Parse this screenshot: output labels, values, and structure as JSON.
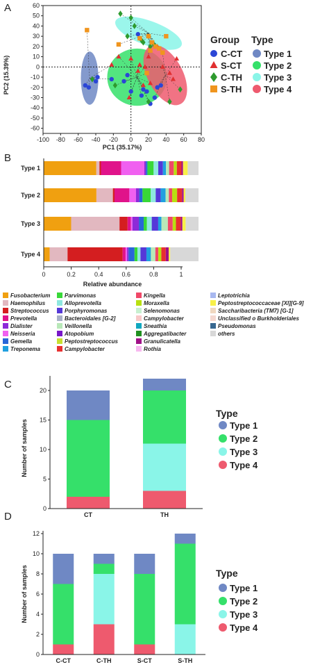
{
  "colors": {
    "C-CT": "#2b46d6",
    "S-CT": "#e03030",
    "C-TH": "#2e9a2e",
    "S-TH": "#f0951e",
    "Type 1": "#6f88c4",
    "Type 2": "#35e06a",
    "Type 3": "#8af5e8",
    "Type 4": "#ee5a6e"
  },
  "panels": {
    "A": "A",
    "B": "B",
    "C": "C",
    "D": "D"
  },
  "chart_data": [
    {
      "type": "scatter",
      "panel": "A",
      "xlabel": "PC1 (35.17%)",
      "ylabel": "PC2 (15.39%)",
      "xlim": [
        -100,
        80
      ],
      "ylim": [
        -65,
        60
      ],
      "xticks": [
        -100,
        -80,
        -60,
        -40,
        -20,
        0,
        20,
        40,
        60,
        80
      ],
      "yticks": [
        60,
        50,
        40,
        30,
        20,
        10,
        0,
        -10,
        -20,
        -30,
        -40,
        -50,
        -60
      ],
      "legend_groups_title": "Group",
      "legend_types_title": "Type",
      "series": [
        {
          "name": "C-CT",
          "marker": "circle",
          "points": [
            [
              -52,
              -18
            ],
            [
              -48,
              -20
            ],
            [
              -38,
              -10
            ],
            [
              -40,
              -14
            ],
            [
              -22,
              -12
            ],
            [
              -8,
              -14
            ],
            [
              -4,
              -8
            ],
            [
              0,
              -24
            ],
            [
              12,
              -28
            ],
            [
              14,
              -22
            ],
            [
              18,
              -24
            ],
            [
              22,
              -36
            ],
            [
              27,
              -30
            ],
            [
              30,
              -20
            ],
            [
              34,
              -18
            ],
            [
              8,
              32
            ]
          ]
        },
        {
          "name": "S-CT",
          "marker": "triangle",
          "points": [
            [
              -22,
              2
            ],
            [
              -14,
              10
            ],
            [
              0,
              8
            ],
            [
              10,
              2
            ],
            [
              16,
              0
            ],
            [
              14,
              -18
            ],
            [
              20,
              10
            ],
            [
              30,
              20
            ],
            [
              36,
              0
            ],
            [
              44,
              -6
            ],
            [
              48,
              -12
            ],
            [
              52,
              8
            ],
            [
              -2,
              -30
            ],
            [
              22,
              -16
            ],
            [
              8,
              -4
            ]
          ]
        },
        {
          "name": "C-TH",
          "marker": "diamond",
          "points": [
            [
              -12,
              52
            ],
            [
              0,
              48
            ],
            [
              4,
              40
            ],
            [
              -4,
              30
            ],
            [
              12,
              26
            ],
            [
              14,
              24
            ],
            [
              22,
              20
            ],
            [
              26,
              22
            ],
            [
              -18,
              -18
            ],
            [
              20,
              -34
            ],
            [
              44,
              -34
            ],
            [
              56,
              -22
            ],
            [
              -44,
              -12
            ]
          ]
        },
        {
          "name": "S-TH",
          "marker": "square",
          "points": [
            [
              -50,
              36
            ],
            [
              10,
              28
            ],
            [
              20,
              30
            ],
            [
              24,
              24
            ],
            [
              28,
              20
            ],
            [
              40,
              30
            ],
            [
              -14,
              22
            ],
            [
              32,
              18
            ],
            [
              36,
              14
            ],
            [
              22,
              16
            ],
            [
              18,
              -6
            ]
          ]
        }
      ],
      "ellipses": [
        {
          "type": "Type 1",
          "center": [
            -47,
            -11
          ],
          "rx": 10,
          "ry": 26
        },
        {
          "type": "Type 2",
          "center": [
            7,
            -10
          ],
          "rx": 34,
          "ry": 28
        },
        {
          "type": "Type 3",
          "center": [
            20,
            33
          ],
          "rx": 40,
          "ry": 12
        },
        {
          "type": "Type 4",
          "center": [
            39,
            -8
          ],
          "rx": 20,
          "ry": 32
        }
      ]
    },
    {
      "type": "bar",
      "panel": "B",
      "orientation": "horizontal",
      "stacked": true,
      "xlabel": "Relative abundance",
      "xlim": [
        0,
        1.0
      ],
      "xticks": [
        0,
        0.2,
        0.4,
        0.6,
        0.8,
        1.0
      ],
      "categories": [
        "Type 1",
        "Type 2",
        "Type 3",
        "Type 4"
      ],
      "taxa_legend": [
        {
          "name": "Fusobacterium",
          "color": "#f0a010"
        },
        {
          "name": "Haemophilus",
          "color": "#e2b8c0"
        },
        {
          "name": "Streptococcus",
          "color": "#d41e20"
        },
        {
          "name": "Prevotella",
          "color": "#e0138a"
        },
        {
          "name": "Dialister",
          "color": "#8d2ad8"
        },
        {
          "name": "Neisseria",
          "color": "#f060f0"
        },
        {
          "name": "Gemella",
          "color": "#2866d8"
        },
        {
          "name": "Treponema",
          "color": "#20a0e0"
        },
        {
          "name": "Parvimonas",
          "color": "#38d838"
        },
        {
          "name": "Alloprevotella",
          "color": "#8ee8e0"
        },
        {
          "name": "Porphyromonas",
          "color": "#5538d8"
        },
        {
          "name": "Bacteroidales [G-2]",
          "color": "#a8b0c8"
        },
        {
          "name": "Veillonella",
          "color": "#b8e8b8"
        },
        {
          "name": "Atopobium",
          "color": "#7818c8"
        },
        {
          "name": "Peptostreptococcus",
          "color": "#c8e030"
        },
        {
          "name": "Campylobacter",
          "color": "#e83030"
        },
        {
          "name": "Kingella",
          "color": "#f04868"
        },
        {
          "name": "Moraxella",
          "color": "#b8e010"
        },
        {
          "name": "Selenomonas",
          "color": "#c8f0d0"
        },
        {
          "name": "Campylobacter",
          "color": "#f8c8c8"
        },
        {
          "name": "Sneathia",
          "color": "#10a8c0"
        },
        {
          "name": "Aggregatibacter",
          "color": "#209020"
        },
        {
          "name": "Granulicatella",
          "color": "#a01088"
        },
        {
          "name": "Rothia",
          "color": "#f8b8f0"
        },
        {
          "name": "Leptotrichia",
          "color": "#a8b8f0"
        },
        {
          "name": "Peptostreptococcaceae [XI][G-9]",
          "color": "#f8f048"
        },
        {
          "name": "Saccharibacteria (TM7) [G-1]",
          "color": "#f0d8c0"
        },
        {
          "name": "Unclassified o Burkholderiales",
          "color": "#f4d8d0"
        },
        {
          "name": "Pseudomonas",
          "color": "#386890"
        },
        {
          "name": "others",
          "color": "#d8d8d8"
        }
      ],
      "series": [
        {
          "name": "Fusobacterium",
          "values": [
            0.34,
            0.32,
            0.17,
            0.04
          ]
        },
        {
          "name": "Haemophilus",
          "values": [
            0.02,
            0.1,
            0.3,
            0.12
          ]
        },
        {
          "name": "Streptococcus",
          "values": [
            0.01,
            0.01,
            0.05,
            0.37
          ]
        },
        {
          "name": "Prevotella",
          "values": [
            0.13,
            0.09,
            0.02,
            0.02
          ]
        },
        {
          "name": "Neisseria",
          "values": [
            0.15,
            0.04,
            0.01,
            0.01
          ]
        },
        {
          "name": "Dialister",
          "values": [
            0.01,
            0.02,
            0.04,
            0.01
          ]
        },
        {
          "name": "Gemella",
          "values": [
            0.01,
            0.02,
            0.03,
            0.04
          ]
        },
        {
          "name": "Parvimonas",
          "values": [
            0.04,
            0.05,
            0.02,
            0.02
          ]
        },
        {
          "name": "Alloprevotella",
          "values": [
            0.03,
            0.03,
            0.03,
            0.02
          ]
        },
        {
          "name": "Porphyromonas",
          "values": [
            0.03,
            0.03,
            0.04,
            0.04
          ]
        },
        {
          "name": "Treponema",
          "values": [
            0.02,
            0.03,
            0.02,
            0.03
          ]
        },
        {
          "name": "Veillonella",
          "values": [
            0.02,
            0.02,
            0.04,
            0.03
          ]
        },
        {
          "name": "Kingella",
          "values": [
            0.03,
            0.02,
            0.03,
            0.02
          ]
        },
        {
          "name": "Moraxella",
          "values": [
            0.02,
            0.03,
            0.02,
            0.02
          ]
        },
        {
          "name": "Campylobacter",
          "values": [
            0.03,
            0.03,
            0.03,
            0.03
          ]
        },
        {
          "name": "Granulicatella",
          "values": [
            0.01,
            0.01,
            0.01,
            0.02
          ]
        },
        {
          "name": "Peptostreptococcaceae [XI][G-9]",
          "values": [
            0.03,
            0.01,
            0.02,
            0.01
          ]
        },
        {
          "name": "others",
          "values": [
            0.07,
            0.08,
            0.08,
            0.19
          ]
        }
      ]
    },
    {
      "type": "bar",
      "panel": "C",
      "stacked": true,
      "ylabel": "Number of samples",
      "ylim": [
        0,
        22
      ],
      "yticks": [
        0,
        5,
        10,
        15,
        20
      ],
      "categories": [
        "CT",
        "TH"
      ],
      "legend_title": "Type",
      "series": [
        {
          "name": "Type 4",
          "values": [
            2,
            3
          ]
        },
        {
          "name": "Type 3",
          "values": [
            0,
            8
          ]
        },
        {
          "name": "Type 2",
          "values": [
            13,
            9
          ]
        },
        {
          "name": "Type 1",
          "values": [
            5,
            2
          ]
        }
      ]
    },
    {
      "type": "bar",
      "panel": "D",
      "stacked": true,
      "ylabel": "Number of samples",
      "ylim": [
        0,
        12
      ],
      "yticks": [
        0,
        2,
        4,
        6,
        8,
        10,
        12
      ],
      "categories": [
        "C-CT",
        "C-TH",
        "S-CT",
        "S-TH"
      ],
      "legend_title": "Type",
      "series": [
        {
          "name": "Type 4",
          "values": [
            1,
            3,
            1,
            0
          ]
        },
        {
          "name": "Type 3",
          "values": [
            0,
            5,
            0,
            3
          ]
        },
        {
          "name": "Type 2",
          "values": [
            6,
            1,
            7,
            8
          ]
        },
        {
          "name": "Type 1",
          "values": [
            3,
            1,
            2,
            1
          ]
        }
      ]
    }
  ]
}
